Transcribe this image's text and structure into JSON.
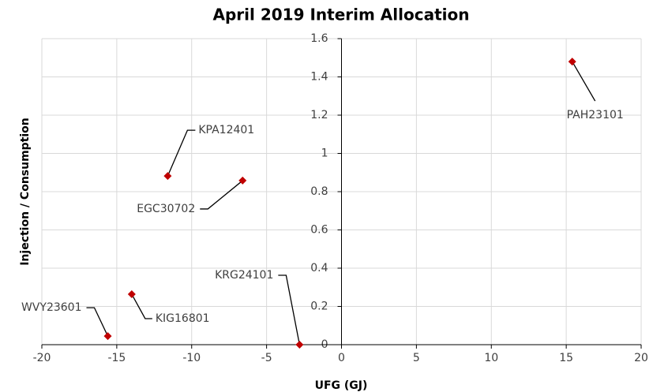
{
  "chart_data": {
    "type": "scatter",
    "title": "April 2019 Interim Allocation",
    "x_label": "UFG (GJ)",
    "y_label": "Injection / Consumption",
    "labels": [
      "WVY23601",
      "KIG16801",
      "KPA12401",
      "EGC30702",
      "KRG24101",
      "PAH23101"
    ],
    "x": [
      -15.6,
      -14.0,
      -11.6,
      -6.6,
      -2.8,
      15.4
    ],
    "values": [
      0.045,
      0.264,
      0.882,
      0.858,
      0,
      1.48
    ],
    "color": "#c00000",
    "xlim": [
      -20,
      20
    ],
    "xticks": [
      -20,
      -15,
      -10,
      -5,
      0,
      5,
      10,
      15,
      20
    ],
    "ylim": [
      0,
      1.6
    ],
    "yticks": [
      0,
      0.2,
      0.4,
      0.6,
      0.8,
      1,
      1.2,
      1.4,
      1.6
    ],
    "grid": true
  }
}
